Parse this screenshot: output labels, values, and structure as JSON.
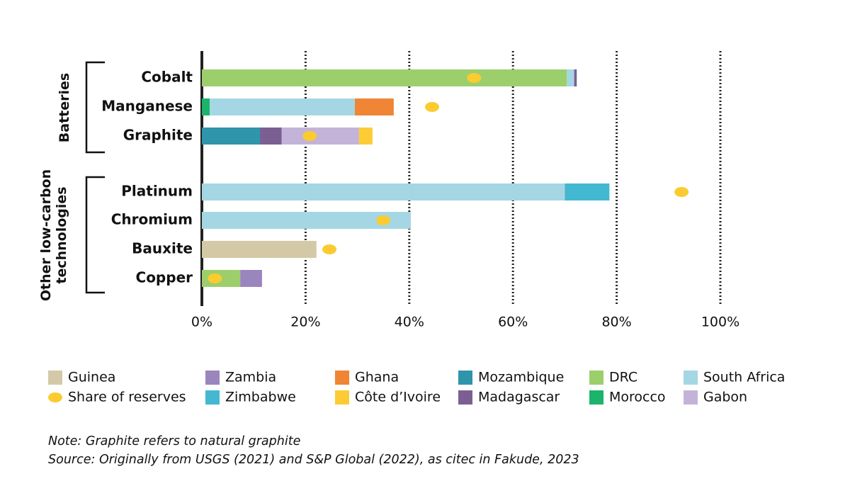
{
  "chart_data": {
    "type": "stacked-bar-horizontal",
    "categories": [
      "Cobalt",
      "Manganese",
      "Graphite",
      "Platinum",
      "Chromium",
      "Bauxite",
      "Copper"
    ],
    "group_labels": [
      "Batteries",
      "Other low-carbon technologies"
    ],
    "series": [
      {
        "name": "Guinea",
        "color": "#d3c9a6",
        "values": [
          null,
          null,
          null,
          null,
          null,
          22.1,
          null
        ]
      },
      {
        "name": "Morocco",
        "color": "#1cb36a",
        "values": [
          null,
          1.5,
          null,
          null,
          null,
          null,
          null
        ]
      },
      {
        "name": "DRC",
        "color": "#9ccf6c",
        "values": [
          70.4,
          null,
          null,
          null,
          null,
          null,
          7.4
        ]
      },
      {
        "name": "Mozambique",
        "color": "#2e95ab",
        "values": [
          null,
          null,
          11.2,
          null,
          null,
          null,
          null
        ]
      },
      {
        "name": "South Africa",
        "color": "#a4d7e3",
        "values": [
          1.4,
          28,
          null,
          70,
          40.3,
          null,
          null
        ]
      },
      {
        "name": "Zimbabwe",
        "color": "#44b8d0",
        "values": [
          null,
          null,
          null,
          8.6,
          null,
          null,
          null
        ]
      },
      {
        "name": "Ghana",
        "color": "#ef8535",
        "values": [
          null,
          7.5,
          null,
          null,
          null,
          null,
          null
        ]
      },
      {
        "name": "Madagascar",
        "color": "#7b5f93",
        "values": [
          0.5,
          null,
          4.2,
          null,
          null,
          null,
          null
        ]
      },
      {
        "name": "Zambia",
        "color": "#9b85bd",
        "values": [
          null,
          null,
          null,
          null,
          null,
          null,
          4.2
        ]
      },
      {
        "name": "Gabon",
        "color": "#c3b3d8",
        "values": [
          null,
          null,
          14.9,
          null,
          null,
          null,
          null
        ]
      },
      {
        "name": "Côte d’Ivoire",
        "color": "#fdcb35",
        "values": [
          null,
          null,
          2.6,
          null,
          null,
          null,
          null
        ]
      }
    ],
    "reserves": {
      "name": "Share of reserves",
      "color": "#fbcb2f",
      "values": [
        52.5,
        44.4,
        20.8,
        92.5,
        35,
        24.6,
        2.5
      ]
    },
    "xlim": [
      0,
      100
    ],
    "xticks": [
      {
        "value": 0,
        "label": "0%"
      },
      {
        "value": 20,
        "label": "20%"
      },
      {
        "value": 40,
        "label": "40%"
      },
      {
        "value": 60,
        "label": "60%"
      },
      {
        "value": 80,
        "label": "80%"
      },
      {
        "value": 100,
        "label": "100%"
      }
    ],
    "grid": true,
    "notes": [
      "Note: Graphite refers to natural graphite",
      "Source: Originally from USGS (2021) and S&P Global (2022), as citec in Fakude, 2023"
    ]
  }
}
